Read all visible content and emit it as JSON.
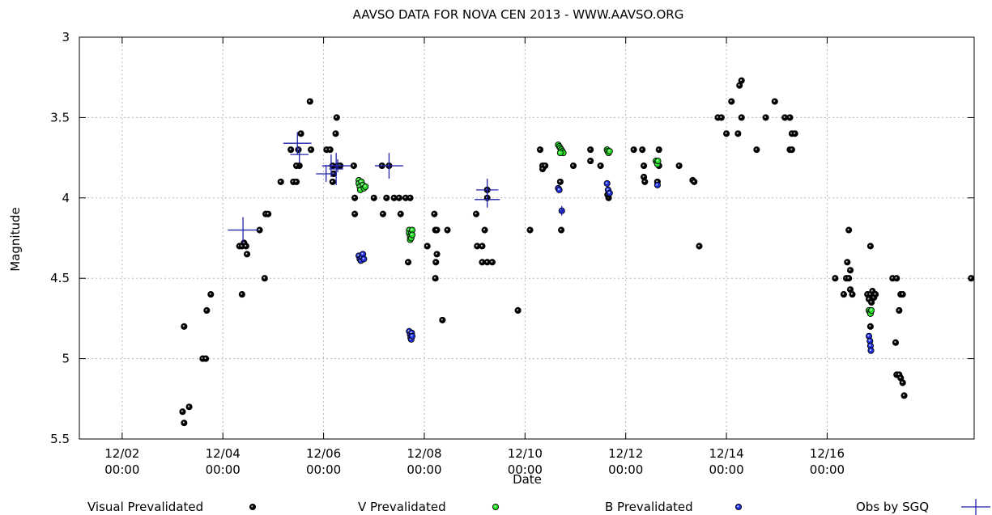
{
  "chart_data": {
    "type": "scatter",
    "title": "AAVSO DATA FOR NOVA CEN 2013 - WWW.AAVSO.ORG",
    "xlabel": "Date",
    "ylabel": "Magnitude",
    "x_unit": "days from 12/02 00:00",
    "xlim": [
      -0.85,
      16.92
    ],
    "ylim": [
      5.5,
      3.0
    ],
    "y_inverted": true,
    "grid": true,
    "legend_position": "bottom",
    "y_ticks": [
      "3",
      "3.5",
      "4",
      "4.5",
      "5",
      "5.5"
    ],
    "x_ticks": [
      {
        "x": 0,
        "line1": "12/02",
        "line2": "00:00"
      },
      {
        "x": 2,
        "line1": "12/04",
        "line2": "00:00"
      },
      {
        "x": 4,
        "line1": "12/06",
        "line2": "00:00"
      },
      {
        "x": 6,
        "line1": "12/08",
        "line2": "00:00"
      },
      {
        "x": 8,
        "line1": "12/10",
        "line2": "00:00"
      },
      {
        "x": 10,
        "line1": "12/12",
        "line2": "00:00"
      },
      {
        "x": 12,
        "line1": "12/14",
        "line2": "00:00"
      },
      {
        "x": 14,
        "line1": "12/16",
        "line2": "00:00"
      }
    ],
    "series": [
      {
        "name": "Visual Prevalidated",
        "color": "#000000",
        "marker": "circle",
        "points": [
          [
            1.2,
            5.33
          ],
          [
            1.23,
            5.4
          ],
          [
            1.33,
            5.3
          ],
          [
            1.23,
            4.8
          ],
          [
            1.6,
            5.0
          ],
          [
            1.66,
            5.0
          ],
          [
            1.68,
            4.7
          ],
          [
            1.76,
            4.6
          ],
          [
            2.33,
            4.3
          ],
          [
            2.38,
            4.3
          ],
          [
            2.42,
            4.28
          ],
          [
            2.46,
            4.3
          ],
          [
            2.48,
            4.35
          ],
          [
            2.38,
            4.6
          ],
          [
            2.73,
            4.2
          ],
          [
            2.85,
            4.1
          ],
          [
            2.9,
            4.1
          ],
          [
            2.83,
            4.5
          ],
          [
            3.15,
            3.9
          ],
          [
            3.35,
            3.7
          ],
          [
            3.4,
            3.9
          ],
          [
            3.46,
            3.9
          ],
          [
            3.5,
            3.7
          ],
          [
            3.52,
            3.8
          ],
          [
            3.55,
            3.6
          ],
          [
            3.46,
            3.8
          ],
          [
            3.73,
            3.4
          ],
          [
            3.75,
            3.7
          ],
          [
            4.06,
            3.7
          ],
          [
            4.13,
            3.7
          ],
          [
            4.18,
            3.8
          ],
          [
            4.2,
            3.85
          ],
          [
            4.24,
            3.6
          ],
          [
            4.26,
            3.5
          ],
          [
            4.28,
            3.8
          ],
          [
            4.33,
            3.8
          ],
          [
            4.18,
            3.9
          ],
          [
            4.6,
            3.8
          ],
          [
            4.62,
            4.0
          ],
          [
            4.62,
            4.1
          ],
          [
            5.0,
            4.0
          ],
          [
            5.16,
            3.8
          ],
          [
            5.18,
            4.1
          ],
          [
            5.25,
            4.0
          ],
          [
            5.3,
            3.8
          ],
          [
            5.4,
            4.0
          ],
          [
            5.5,
            4.0
          ],
          [
            5.53,
            4.1
          ],
          [
            5.63,
            4.0
          ],
          [
            5.72,
            4.0
          ],
          [
            5.68,
            4.4
          ],
          [
            6.06,
            4.3
          ],
          [
            6.2,
            4.1
          ],
          [
            6.22,
            4.2
          ],
          [
            6.23,
            4.4
          ],
          [
            6.25,
            4.35
          ],
          [
            6.22,
            4.5
          ],
          [
            6.36,
            4.76
          ],
          [
            6.46,
            4.2
          ],
          [
            6.25,
            4.2
          ],
          [
            7.03,
            4.1
          ],
          [
            7.05,
            4.3
          ],
          [
            7.15,
            4.3
          ],
          [
            7.15,
            4.4
          ],
          [
            7.2,
            4.2
          ],
          [
            7.25,
            4.4
          ],
          [
            7.35,
            4.4
          ],
          [
            7.25,
            3.95
          ],
          [
            7.25,
            4.0
          ],
          [
            7.86,
            4.7
          ],
          [
            8.1,
            4.2
          ],
          [
            8.3,
            3.7
          ],
          [
            8.35,
            3.8
          ],
          [
            8.4,
            3.8
          ],
          [
            8.35,
            3.82
          ],
          [
            8.7,
            3.9
          ],
          [
            8.72,
            4.2
          ],
          [
            8.96,
            3.8
          ],
          [
            9.3,
            3.77
          ],
          [
            9.3,
            3.7
          ],
          [
            9.5,
            3.8
          ],
          [
            9.66,
            4.0
          ],
          [
            9.64,
            3.98
          ],
          [
            10.16,
            3.7
          ],
          [
            10.33,
            3.7
          ],
          [
            10.36,
            3.8
          ],
          [
            10.36,
            3.87
          ],
          [
            10.38,
            3.9
          ],
          [
            10.66,
            3.7
          ],
          [
            10.66,
            3.8
          ],
          [
            10.63,
            3.9
          ],
          [
            11.06,
            3.8
          ],
          [
            11.33,
            3.89
          ],
          [
            11.36,
            3.9
          ],
          [
            11.46,
            4.3
          ],
          [
            11.83,
            3.5
          ],
          [
            11.9,
            3.5
          ],
          [
            12.0,
            3.6
          ],
          [
            12.1,
            3.4
          ],
          [
            12.23,
            3.6
          ],
          [
            12.26,
            3.3
          ],
          [
            12.3,
            3.27
          ],
          [
            12.3,
            3.5
          ],
          [
            12.6,
            3.7
          ],
          [
            12.78,
            3.5
          ],
          [
            12.96,
            3.4
          ],
          [
            13.16,
            3.5
          ],
          [
            13.26,
            3.5
          ],
          [
            13.26,
            3.7
          ],
          [
            13.3,
            3.6
          ],
          [
            13.3,
            3.7
          ],
          [
            13.36,
            3.6
          ],
          [
            14.16,
            4.5
          ],
          [
            14.33,
            4.6
          ],
          [
            14.38,
            4.5
          ],
          [
            14.4,
            4.4
          ],
          [
            14.43,
            4.5
          ],
          [
            14.46,
            4.45
          ],
          [
            14.46,
            4.57
          ],
          [
            14.43,
            4.2
          ],
          [
            14.5,
            4.6
          ],
          [
            14.8,
            4.6
          ],
          [
            14.83,
            4.63
          ],
          [
            14.86,
            4.6
          ],
          [
            14.88,
            4.65
          ],
          [
            14.9,
            4.58
          ],
          [
            14.93,
            4.62
          ],
          [
            14.96,
            4.6
          ],
          [
            14.86,
            4.8
          ],
          [
            14.86,
            4.3
          ],
          [
            14.86,
            4.7
          ],
          [
            15.3,
            4.5
          ],
          [
            15.38,
            4.5
          ],
          [
            15.36,
            4.9
          ],
          [
            15.38,
            5.1
          ],
          [
            15.43,
            5.1
          ],
          [
            15.46,
            5.12
          ],
          [
            15.5,
            5.15
          ],
          [
            15.53,
            5.23
          ],
          [
            15.43,
            4.7
          ],
          [
            15.46,
            4.6
          ],
          [
            15.5,
            4.6
          ],
          [
            16.86,
            4.5
          ]
        ]
      },
      {
        "name": "V Prevalidated",
        "color": "#22dd22",
        "marker": "circle",
        "points": [
          [
            4.7,
            3.89
          ],
          [
            4.7,
            3.91
          ],
          [
            4.72,
            3.93
          ],
          [
            4.73,
            3.95
          ],
          [
            4.75,
            3.9
          ],
          [
            4.78,
            3.92
          ],
          [
            4.8,
            3.94
          ],
          [
            4.83,
            3.93
          ],
          [
            5.7,
            4.2
          ],
          [
            5.7,
            4.22
          ],
          [
            5.72,
            4.24
          ],
          [
            5.72,
            4.26
          ],
          [
            5.74,
            4.22
          ],
          [
            5.74,
            4.25
          ],
          [
            5.76,
            4.2
          ],
          [
            5.76,
            4.23
          ],
          [
            8.66,
            3.67
          ],
          [
            8.68,
            3.68
          ],
          [
            8.7,
            3.69
          ],
          [
            8.72,
            3.7
          ],
          [
            8.74,
            3.71
          ],
          [
            8.76,
            3.72
          ],
          [
            8.7,
            3.72
          ],
          [
            9.63,
            3.7
          ],
          [
            9.64,
            3.71
          ],
          [
            9.66,
            3.72
          ],
          [
            9.68,
            3.71
          ],
          [
            10.6,
            3.77
          ],
          [
            10.62,
            3.78
          ],
          [
            10.63,
            3.79
          ],
          [
            10.64,
            3.77
          ],
          [
            14.83,
            4.7
          ],
          [
            14.85,
            4.71
          ],
          [
            14.86,
            4.72
          ],
          [
            14.88,
            4.7
          ]
        ]
      },
      {
        "name": "B Prevalidated",
        "color": "#1f2fe0",
        "marker": "circle",
        "points": [
          [
            4.7,
            4.36
          ],
          [
            4.72,
            4.38
          ],
          [
            4.74,
            4.39
          ],
          [
            4.76,
            4.37
          ],
          [
            4.78,
            4.35
          ],
          [
            4.8,
            4.38
          ],
          [
            5.7,
            4.83
          ],
          [
            5.72,
            4.85
          ],
          [
            5.73,
            4.87
          ],
          [
            5.74,
            4.88
          ],
          [
            5.75,
            4.84
          ],
          [
            5.76,
            4.86
          ],
          [
            8.66,
            3.94
          ],
          [
            8.68,
            3.95
          ],
          [
            8.73,
            4.08
          ],
          [
            9.63,
            3.91
          ],
          [
            9.65,
            3.95
          ],
          [
            9.68,
            3.97
          ],
          [
            10.63,
            3.92
          ],
          [
            14.83,
            4.86
          ],
          [
            14.85,
            4.89
          ],
          [
            14.86,
            4.92
          ],
          [
            14.87,
            4.95
          ]
        ]
      },
      {
        "name": "Obs by SGQ",
        "color": "#2222aa",
        "marker": "cross",
        "points": [
          [
            2.4,
            4.2,
            0.3,
            0.08
          ],
          [
            3.48,
            3.66,
            0.28,
            0.07
          ],
          [
            3.52,
            3.73,
            0.18,
            0.05
          ],
          [
            4.05,
            3.85,
            0.2,
            0.05
          ],
          [
            4.15,
            3.8,
            0.18,
            0.07
          ],
          [
            4.25,
            3.82,
            0.14,
            0.1
          ],
          [
            4.28,
            3.8,
            0.26,
            0.04
          ],
          [
            5.3,
            3.8,
            0.28,
            0.08
          ],
          [
            7.25,
            3.95,
            0.22,
            0.07
          ],
          [
            7.25,
            4.01,
            0.25,
            0.05
          ],
          [
            8.73,
            4.08,
            0.03,
            0.03
          ]
        ]
      }
    ]
  }
}
